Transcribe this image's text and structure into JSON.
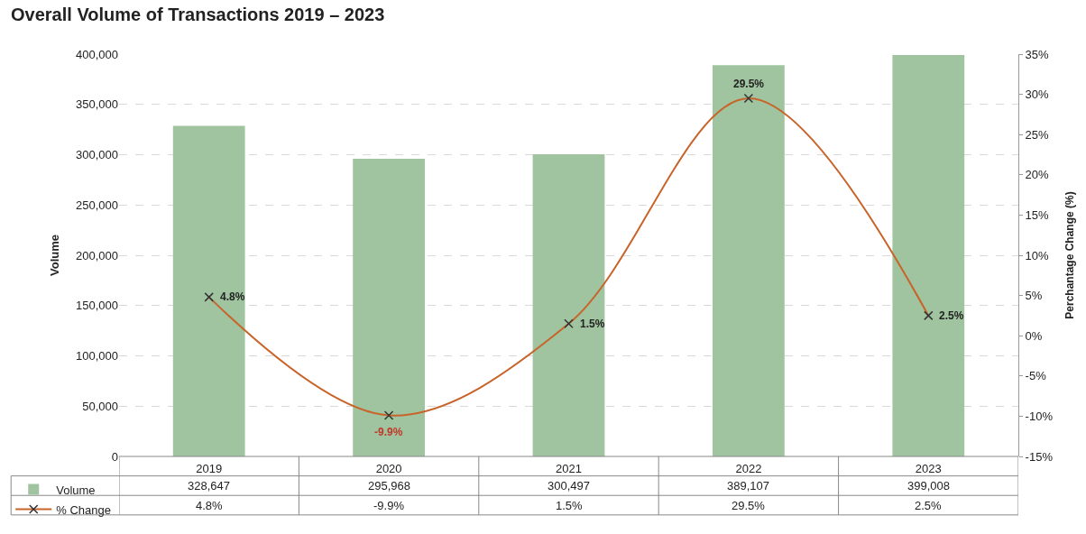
{
  "chart_data": {
    "type": "bar",
    "title": "Overall Volume of Transactions 2019 – 2023",
    "categories": [
      "2019",
      "2020",
      "2021",
      "2022",
      "2023"
    ],
    "series": [
      {
        "name": "Volume",
        "color": "#9fc49f",
        "values": [
          328647,
          295968,
          300497,
          389107,
          399008
        ],
        "value_labels": [
          "328,647",
          "295,968",
          "300,497",
          "389,107",
          "399,008"
        ]
      },
      {
        "name": "% Change",
        "type": "line",
        "axis": "y2",
        "color": "#c8642a",
        "marker": "cross",
        "values": [
          4.8,
          -9.9,
          1.5,
          29.5,
          2.5
        ],
        "value_labels": [
          "4.8%",
          "-9.9%",
          "1.5%",
          "29.5%",
          "2.5%"
        ]
      }
    ],
    "ylabel": "Volume",
    "y2label": "Perchantage Change (%)",
    "ylim": [
      0,
      400000
    ],
    "yticks": [
      {
        "value": 0,
        "label": "0"
      },
      {
        "value": 50000,
        "label": "50,000"
      },
      {
        "value": 100000,
        "label": "100,000"
      },
      {
        "value": 150000,
        "label": "150,000"
      },
      {
        "value": 200000,
        "label": "200,000"
      },
      {
        "value": 250000,
        "label": "250,000"
      },
      {
        "value": 300000,
        "label": "300,000"
      },
      {
        "value": 350000,
        "label": "350,000"
      },
      {
        "value": 400000,
        "label": "400,000"
      }
    ],
    "y2lim": [
      -15,
      35
    ],
    "y2ticks": [
      {
        "value": -15,
        "label": "-15%"
      },
      {
        "value": -10,
        "label": "-10%"
      },
      {
        "value": -5,
        "label": "-5%"
      },
      {
        "value": 0,
        "label": "0%"
      },
      {
        "value": 5,
        "label": "5%"
      },
      {
        "value": 10,
        "label": "10%"
      },
      {
        "value": 15,
        "label": "15%"
      },
      {
        "value": 20,
        "label": "20%"
      },
      {
        "value": 25,
        "label": "25%"
      },
      {
        "value": 30,
        "label": "30%"
      },
      {
        "value": 35,
        "label": "35%"
      }
    ],
    "grid": "y",
    "legend": "bottom left",
    "data_labels": true
  }
}
